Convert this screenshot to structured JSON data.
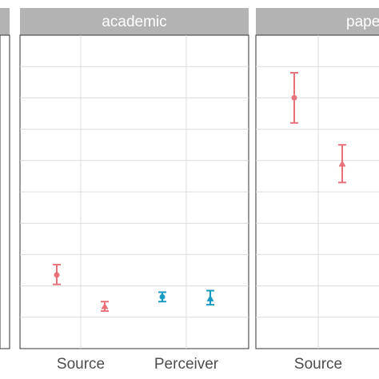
{
  "chart_data": {
    "type": "scatter",
    "note_series_colors": [
      "#E8717A",
      "#1A9BC4"
    ],
    "facets": [
      {
        "label": "",
        "categories": [],
        "points": []
      },
      {
        "label": "academic",
        "categories": [
          "Source",
          "Perceiver"
        ],
        "points": [
          {
            "category": "Source",
            "group": "A",
            "marker": "circle",
            "y": 0.235,
            "lo": 0.205,
            "hi": 0.268
          },
          {
            "category": "Source",
            "group": "B",
            "marker": "triangle",
            "y": 0.135,
            "lo": 0.12,
            "hi": 0.15
          },
          {
            "category": "Perceiver",
            "group": "A",
            "marker": "circle",
            "y": 0.165,
            "lo": 0.15,
            "hi": 0.18
          },
          {
            "category": "Perceiver",
            "group": "B",
            "marker": "triangle",
            "y": 0.16,
            "lo": 0.14,
            "hi": 0.185
          }
        ]
      },
      {
        "label": "pape",
        "categories": [
          "Source"
        ],
        "points": [
          {
            "category": "Source",
            "group": "A",
            "marker": "circle",
            "y": 0.8,
            "lo": 0.72,
            "hi": 0.88
          },
          {
            "category": "Source",
            "group": "B",
            "marker": "triangle",
            "y": 0.59,
            "lo": 0.53,
            "hi": 0.65
          }
        ]
      }
    ],
    "ylim": [
      0,
      1
    ],
    "grid": true
  }
}
